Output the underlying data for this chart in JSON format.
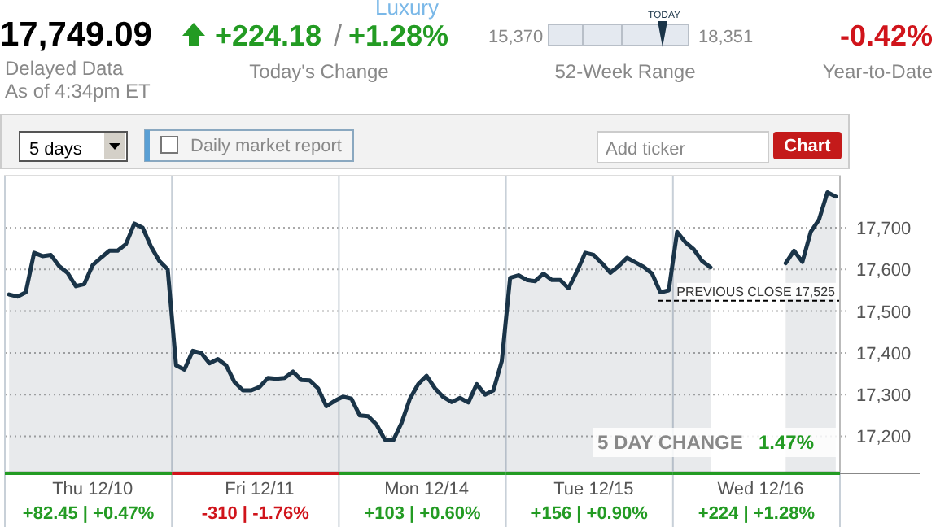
{
  "chart_data": {
    "type": "area",
    "categories": [
      null,
      null,
      null,
      null,
      null,
      null,
      null,
      null,
      null,
      null,
      "Thu 12/10",
      null,
      null,
      null,
      null,
      null,
      null,
      null,
      null,
      null,
      null,
      null,
      null,
      null,
      null,
      null,
      null,
      null,
      null,
      null,
      "Fri 12/11",
      null,
      null,
      null,
      null,
      null,
      null,
      null,
      null,
      null,
      null,
      null,
      null,
      null,
      null,
      null,
      null,
      null,
      null,
      null,
      "Mon 12/14",
      null,
      null,
      null,
      null,
      null,
      null,
      null,
      null,
      null,
      null,
      null,
      null,
      null,
      null,
      null,
      null,
      null,
      null,
      null,
      "Tue 12/15",
      null,
      null,
      null,
      null,
      null,
      null,
      null,
      null,
      null,
      null,
      null,
      null,
      null,
      null,
      null,
      null,
      null,
      null,
      null,
      "Wed 12/16",
      null,
      null,
      null,
      null,
      null,
      null,
      null,
      null,
      null
    ],
    "ylim": [
      17115,
      17825
    ],
    "yticks": [
      {
        "value": 17200,
        "label": "17,200"
      },
      {
        "value": 17300,
        "label": "17,300"
      },
      {
        "value": 17400,
        "label": "17,400"
      },
      {
        "value": 17500,
        "label": "17,500"
      },
      {
        "value": 17600,
        "label": "17,600"
      },
      {
        "value": 17700,
        "label": "17,700"
      }
    ],
    "grid": "y",
    "series": [
      {
        "color": "#1a3448",
        "values": [
          17540,
          17535,
          17545,
          17640,
          17632,
          17635,
          17608,
          17592,
          17560,
          17565,
          17610,
          17628,
          17645,
          17645,
          17661,
          17710,
          17700,
          17655,
          17620,
          17600,
          17370,
          17360,
          17405,
          17400,
          17375,
          17385,
          17370,
          17330,
          17310,
          17310,
          17318,
          17340,
          17338,
          17340,
          17355,
          17335,
          17334,
          17315,
          17272,
          17285,
          17295,
          17290,
          17250,
          17248,
          17228,
          17192,
          17190,
          17232,
          17290,
          17325,
          17345,
          17315,
          17294,
          17282,
          17292,
          17281,
          17325,
          17300,
          17310,
          17380,
          17580,
          17586,
          17575,
          17572,
          17590,
          17575,
          17575,
          17555,
          17595,
          17640,
          17635,
          17615,
          17592,
          17608,
          17628,
          17617,
          17606,
          17590,
          17545,
          17550,
          17690,
          17665,
          17648,
          17620,
          17605,
          null,
          null,
          null,
          null,
          null,
          null,
          null,
          null,
          17615,
          17645,
          17618,
          17690,
          17720,
          17785,
          17775
        ]
      }
    ],
    "ref_lines": [
      {
        "axis": "y",
        "value": 17525,
        "label": "PREVIOUS CLOSE 17,525",
        "line_style": "dashed"
      }
    ],
    "annotations": [
      "17,749.09",
      "Delayed Data",
      "As of 4:34pm ET",
      "+224.18",
      "/",
      "+1.28%",
      "Today's Change",
      "Luxury",
      "15,370",
      "TODAY",
      "18,351",
      "52-Week Range",
      "-0.42%",
      "Year-to-Date",
      "5 days",
      "Daily market report",
      "Add ticker",
      "Chart",
      "5 DAY CHANGE",
      "1.47%",
      "+82.45 | +0.47%",
      "-310 | -1.76%",
      "+103 | +0.60%",
      "+156 | +0.90%",
      "+224 | +1.28%"
    ]
  }
}
